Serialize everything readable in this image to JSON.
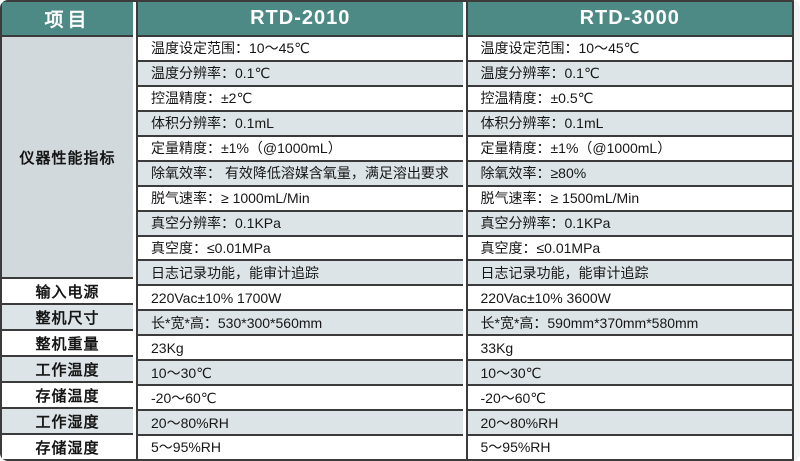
{
  "colors": {
    "header_bg": "#4d8a86",
    "header_text": "#ffffff",
    "alt_row_bg": "#dce4e7",
    "group_cell_bg": "#d2d9dc",
    "border": "#3b3b3b"
  },
  "table": {
    "header": {
      "items_col": "项目",
      "model_a": "RTD-2010",
      "model_b": "RTD-3000"
    },
    "performance_group_label": "仪器性能指标",
    "perf_rows": [
      {
        "r2010": "温度设定范围：10～45℃",
        "r3000": "温度设定范围：10～45℃"
      },
      {
        "r2010": "温度分辨率：0.1℃",
        "r3000": "温度分辨率：0.1℃"
      },
      {
        "r2010": "控温精度：±2℃",
        "r3000": "控温精度：±0.5℃"
      },
      {
        "r2010": "体积分辨率：0.1mL",
        "r3000": "体积分辨率：0.1mL"
      },
      {
        "r2010": "定量精度：±1%（@1000mL）",
        "r3000": "定量精度：±1%（@1000mL）"
      },
      {
        "r2010": "除氧效率： 有效降低溶媒含氧量，满足溶出要求",
        "r3000": "除氧效率：≥80%"
      },
      {
        "r2010": "脱气速率：≥ 1000mL/Min",
        "r3000": "脱气速率：≥ 1500mL/Min"
      },
      {
        "r2010": "真空分辨率：0.1KPa",
        "r3000": "真空分辨率：0.1KPa"
      },
      {
        "r2010": "真空度：≤0.01MPa",
        "r3000": "真空度：≤0.01MPa"
      },
      {
        "r2010": "日志记录功能，能审计追踪",
        "r3000": "日志记录功能，能审计追踪"
      }
    ],
    "spec_rows": [
      {
        "label": "输入电源",
        "r2010": "220Vac±10% 1700W",
        "r3000": "220Vac±10% 3600W"
      },
      {
        "label": "整机尺寸",
        "r2010": "长*宽*高：530*300*560mm",
        "r3000": "长*宽*高：590mm*370mm*580mm"
      },
      {
        "label": "整机重量",
        "r2010": "23Kg",
        "r3000": "33Kg"
      },
      {
        "label": "工作温度",
        "r2010": "10～30℃",
        "r3000": "10～30℃"
      },
      {
        "label": "存储温度",
        "r2010": "-20～60℃",
        "r3000": "-20～60℃"
      },
      {
        "label": "工作湿度",
        "r2010": "20～80%RH",
        "r3000": "20～80%RH"
      },
      {
        "label": "存储湿度",
        "r2010": "5～95%RH",
        "r3000": "5～95%RH"
      }
    ]
  }
}
